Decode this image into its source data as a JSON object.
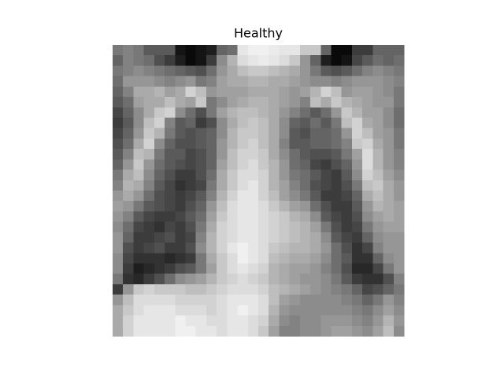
{
  "chart_data": {
    "type": "image",
    "title": "Healthy",
    "cmap": "gray",
    "values": [
      [
        120,
        130,
        120,
        90,
        90,
        90,
        20,
        10,
        20,
        30,
        100,
        110,
        230,
        240,
        240,
        235,
        230,
        230,
        200,
        200,
        100,
        10,
        10,
        60,
        60,
        100,
        100,
        100
      ],
      [
        100,
        130,
        120,
        110,
        80,
        60,
        30,
        10,
        20,
        60,
        140,
        180,
        220,
        230,
        235,
        230,
        220,
        200,
        150,
        100,
        30,
        10,
        20,
        70,
        90,
        110,
        100,
        110
      ],
      [
        120,
        130,
        140,
        130,
        120,
        110,
        100,
        90,
        80,
        110,
        150,
        170,
        190,
        200,
        200,
        190,
        180,
        170,
        150,
        120,
        90,
        80,
        90,
        110,
        130,
        140,
        130,
        120
      ],
      [
        110,
        150,
        150,
        150,
        140,
        130,
        140,
        150,
        120,
        130,
        160,
        170,
        170,
        180,
        180,
        170,
        170,
        160,
        150,
        140,
        140,
        130,
        140,
        150,
        150,
        150,
        140,
        130
      ],
      [
        100,
        130,
        170,
        170,
        180,
        160,
        170,
        210,
        190,
        150,
        160,
        160,
        160,
        170,
        170,
        170,
        160,
        150,
        160,
        180,
        210,
        190,
        150,
        160,
        160,
        150,
        140,
        120
      ],
      [
        90,
        110,
        160,
        170,
        170,
        190,
        170,
        160,
        200,
        120,
        140,
        160,
        170,
        180,
        180,
        170,
        160,
        150,
        130,
        190,
        170,
        200,
        180,
        170,
        160,
        150,
        150,
        120
      ],
      [
        70,
        100,
        140,
        170,
        200,
        210,
        140,
        110,
        80,
        120,
        160,
        180,
        190,
        190,
        180,
        170,
        150,
        130,
        110,
        90,
        110,
        150,
        200,
        180,
        160,
        160,
        140,
        110
      ],
      [
        60,
        90,
        140,
        190,
        210,
        130,
        90,
        100,
        60,
        80,
        140,
        170,
        190,
        200,
        190,
        170,
        140,
        100,
        90,
        110,
        90,
        120,
        190,
        210,
        170,
        160,
        140,
        110
      ],
      [
        70,
        100,
        150,
        200,
        180,
        120,
        90,
        80,
        90,
        100,
        140,
        180,
        200,
        200,
        190,
        170,
        140,
        90,
        80,
        100,
        100,
        110,
        150,
        210,
        190,
        160,
        150,
        120
      ],
      [
        80,
        110,
        170,
        210,
        140,
        100,
        80,
        80,
        90,
        100,
        150,
        180,
        200,
        210,
        190,
        170,
        130,
        90,
        90,
        100,
        100,
        110,
        130,
        200,
        210,
        170,
        150,
        120
      ],
      [
        90,
        130,
        190,
        180,
        120,
        90,
        90,
        70,
        80,
        100,
        150,
        190,
        210,
        210,
        200,
        170,
        140,
        110,
        90,
        80,
        80,
        90,
        120,
        160,
        220,
        180,
        150,
        130
      ],
      [
        100,
        150,
        200,
        150,
        110,
        90,
        80,
        70,
        80,
        100,
        160,
        190,
        210,
        220,
        200,
        180,
        150,
        110,
        100,
        70,
        60,
        80,
        100,
        150,
        220,
        180,
        150,
        130
      ],
      [
        120,
        170,
        190,
        140,
        100,
        80,
        60,
        60,
        80,
        110,
        170,
        200,
        220,
        220,
        210,
        180,
        150,
        120,
        110,
        90,
        70,
        60,
        90,
        140,
        210,
        190,
        160,
        140
      ],
      [
        130,
        180,
        170,
        130,
        90,
        70,
        50,
        60,
        70,
        120,
        170,
        200,
        220,
        230,
        210,
        180,
        160,
        130,
        110,
        80,
        70,
        60,
        80,
        120,
        190,
        200,
        170,
        150
      ],
      [
        150,
        170,
        150,
        110,
        80,
        70,
        60,
        70,
        90,
        130,
        180,
        210,
        230,
        230,
        210,
        190,
        160,
        140,
        120,
        90,
        60,
        60,
        70,
        100,
        170,
        190,
        170,
        150
      ],
      [
        160,
        150,
        120,
        90,
        80,
        70,
        60,
        80,
        100,
        150,
        190,
        220,
        230,
        230,
        220,
        200,
        180,
        160,
        150,
        110,
        80,
        60,
        60,
        90,
        150,
        180,
        170,
        160
      ],
      [
        150,
        130,
        90,
        70,
        60,
        60,
        70,
        90,
        110,
        160,
        200,
        220,
        230,
        230,
        220,
        210,
        200,
        180,
        170,
        140,
        90,
        70,
        60,
        80,
        140,
        160,
        170,
        160
      ],
      [
        140,
        110,
        70,
        60,
        50,
        70,
        60,
        80,
        120,
        170,
        210,
        220,
        230,
        230,
        220,
        210,
        200,
        190,
        180,
        160,
        120,
        80,
        60,
        70,
        120,
        150,
        160,
        160
      ],
      [
        150,
        100,
        60,
        60,
        70,
        80,
        60,
        70,
        130,
        180,
        210,
        220,
        230,
        230,
        220,
        210,
        200,
        190,
        180,
        170,
        140,
        90,
        70,
        60,
        100,
        140,
        150,
        150
      ],
      [
        150,
        80,
        60,
        70,
        80,
        60,
        60,
        80,
        140,
        180,
        210,
        230,
        240,
        230,
        220,
        200,
        190,
        180,
        180,
        170,
        150,
        110,
        80,
        50,
        70,
        130,
        150,
        150
      ],
      [
        140,
        70,
        50,
        50,
        50,
        40,
        50,
        60,
        120,
        170,
        200,
        220,
        240,
        230,
        220,
        190,
        180,
        170,
        170,
        160,
        140,
        110,
        90,
        50,
        50,
        100,
        140,
        150
      ],
      [
        140,
        60,
        30,
        40,
        50,
        60,
        80,
        90,
        120,
        160,
        200,
        220,
        230,
        220,
        210,
        180,
        170,
        160,
        160,
        150,
        130,
        110,
        80,
        40,
        40,
        70,
        120,
        150
      ],
      [
        120,
        50,
        40,
        60,
        80,
        110,
        140,
        150,
        160,
        180,
        200,
        210,
        220,
        210,
        200,
        180,
        170,
        160,
        150,
        150,
        140,
        120,
        90,
        60,
        50,
        50,
        80,
        130
      ],
      [
        60,
        150,
        200,
        210,
        200,
        200,
        200,
        190,
        190,
        200,
        210,
        220,
        220,
        220,
        210,
        190,
        180,
        170,
        160,
        150,
        140,
        130,
        120,
        100,
        70,
        80,
        100,
        120
      ],
      [
        150,
        190,
        220,
        220,
        220,
        220,
        210,
        210,
        210,
        210,
        220,
        230,
        230,
        230,
        220,
        190,
        160,
        150,
        140,
        140,
        140,
        140,
        130,
        120,
        100,
        120,
        150,
        130
      ],
      [
        170,
        200,
        220,
        230,
        230,
        230,
        220,
        220,
        220,
        210,
        220,
        230,
        240,
        230,
        220,
        180,
        150,
        140,
        140,
        140,
        140,
        140,
        140,
        130,
        120,
        140,
        160,
        140
      ],
      [
        170,
        210,
        230,
        230,
        230,
        230,
        240,
        230,
        230,
        220,
        220,
        230,
        230,
        220,
        210,
        170,
        140,
        130,
        140,
        140,
        150,
        150,
        150,
        140,
        130,
        150,
        180,
        150
      ],
      [
        170,
        210,
        230,
        230,
        230,
        230,
        240,
        240,
        230,
        230,
        220,
        230,
        230,
        220,
        200,
        160,
        130,
        130,
        140,
        140,
        150,
        160,
        160,
        150,
        140,
        160,
        190,
        140
      ]
    ]
  }
}
